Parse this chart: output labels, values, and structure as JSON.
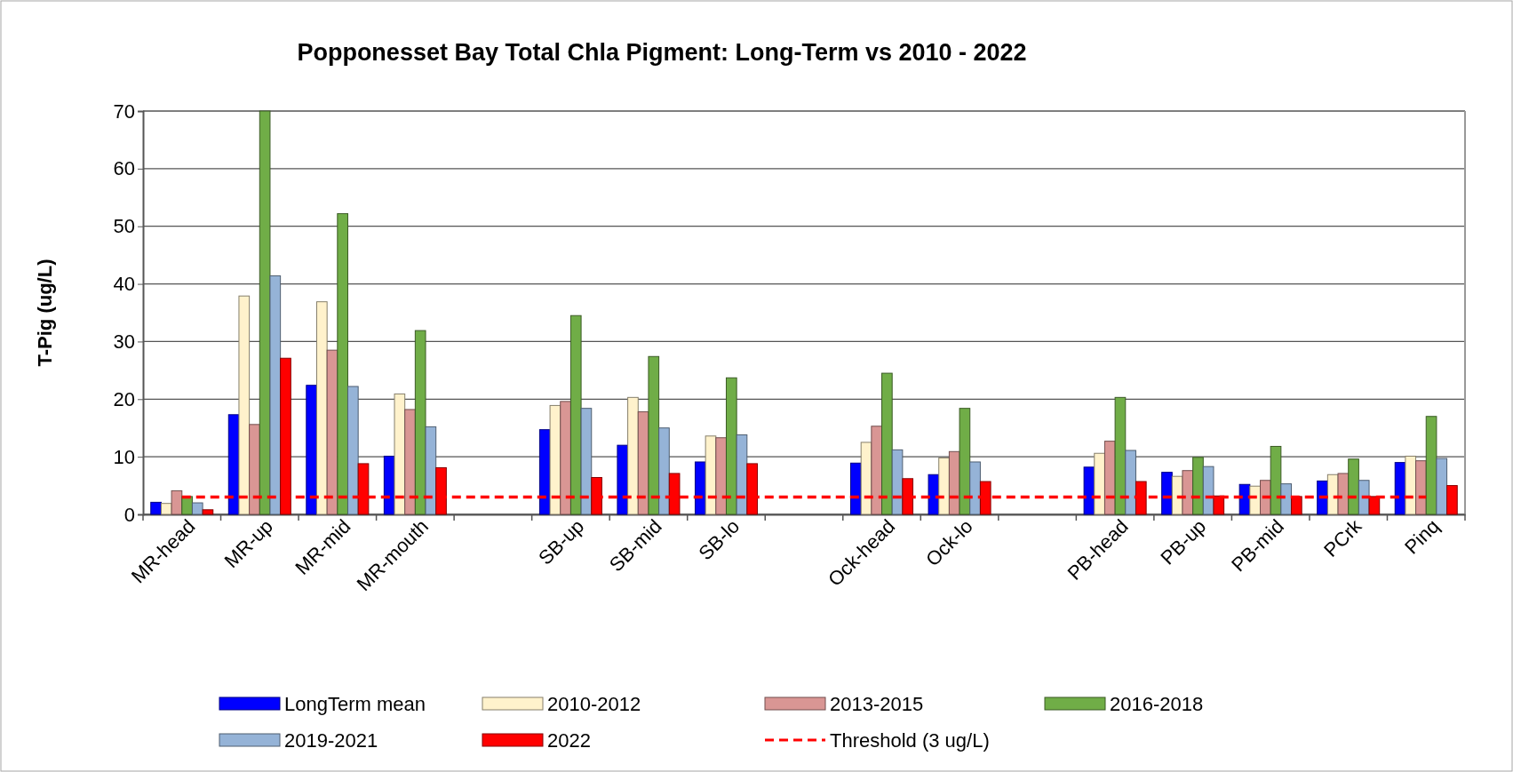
{
  "chart_data": {
    "type": "bar",
    "title": "Popponesset Bay Total Chla Pigment: Long-Term vs 2010 - 2022",
    "ylabel": "T-Pig (ug/L)",
    "categories": [
      "MR-head",
      "MR-up",
      "MR-mid",
      "MR-mouth",
      null,
      "SB-up",
      "SB-mid",
      "SB-lo",
      null,
      "Ock-head",
      "Ock-lo",
      null,
      "PB-head",
      "PB-up",
      "PB-mid",
      "PCrk",
      "Pinq"
    ],
    "series": [
      {
        "name": "LongTerm mean",
        "color": "#0000ff",
        "values": [
          2.1,
          17.3,
          22.4,
          10.1,
          null,
          14.7,
          12.0,
          9.1,
          null,
          8.9,
          6.9,
          null,
          8.2,
          7.3,
          5.2,
          5.8,
          9.0
        ]
      },
      {
        "name": "2010-2012",
        "color": "#fff2cc",
        "values": [
          1.9,
          37.9,
          36.9,
          20.9,
          null,
          18.9,
          20.3,
          13.6,
          null,
          12.5,
          9.8,
          null,
          10.6,
          6.6,
          4.9,
          6.9,
          10.1
        ]
      },
      {
        "name": "2013-2015",
        "color": "#d99694",
        "values": [
          4.1,
          15.6,
          28.5,
          18.2,
          null,
          19.6,
          17.8,
          13.3,
          null,
          15.3,
          10.9,
          null,
          12.7,
          7.6,
          5.9,
          7.1,
          9.3
        ]
      },
      {
        "name": "2016-2018",
        "color": "#70ad47",
        "values": [
          3.1,
          70,
          52.2,
          31.9,
          null,
          34.5,
          27.4,
          23.7,
          null,
          24.5,
          18.4,
          null,
          20.3,
          9.9,
          11.8,
          9.6,
          17.0
        ]
      },
      {
        "name": "2019-2021",
        "color": "#95b3d7",
        "values": [
          2.0,
          41.4,
          22.2,
          15.2,
          null,
          18.4,
          15.0,
          13.8,
          null,
          11.2,
          9.1,
          null,
          11.1,
          8.3,
          5.3,
          5.9,
          9.7
        ]
      },
      {
        "name": "2022",
        "color": "#ff0000",
        "values": [
          0.8,
          27.1,
          8.8,
          8.1,
          null,
          6.4,
          7.1,
          8.8,
          null,
          6.2,
          5.7,
          null,
          5.7,
          3.2,
          3.1,
          3.1,
          5.0
        ]
      },
      {
        "name": "Threshold (3 ug/L)",
        "type": "line",
        "line_style": "dashed",
        "color": "#ff0000",
        "values": [
          3,
          3,
          3,
          3,
          3,
          3,
          3,
          3,
          3,
          3,
          3,
          3,
          3,
          3,
          3,
          3,
          3
        ]
      }
    ],
    "ylim": [
      0,
      70
    ],
    "yticks": [
      0,
      10,
      20,
      30,
      40,
      50,
      60,
      70
    ],
    "grid": "y",
    "legend": "bottom"
  }
}
